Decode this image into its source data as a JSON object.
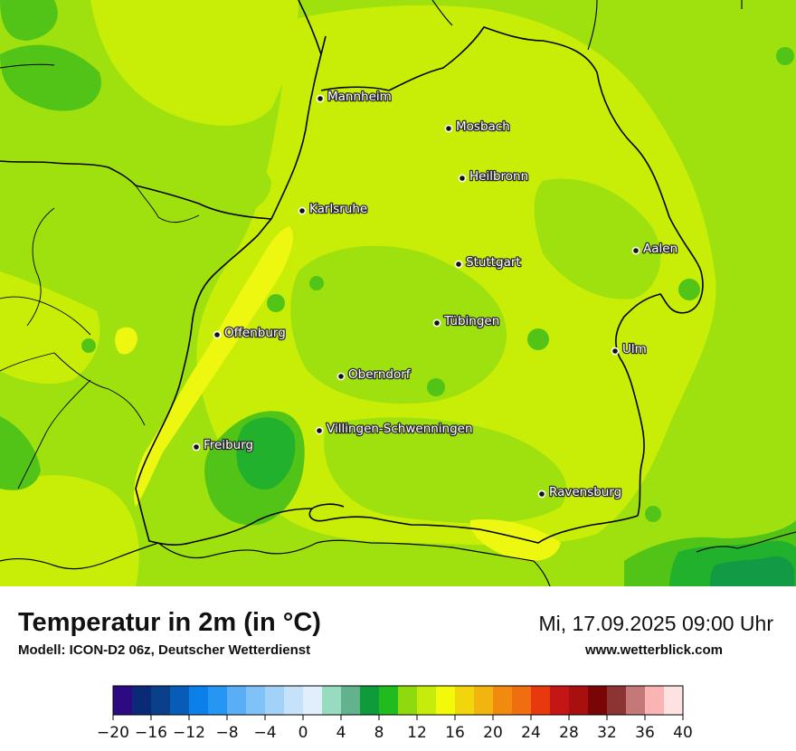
{
  "title": "Temperatur in 2m (in °C)",
  "model": "Modell: ICON-D2 06z, Deutscher Wetterdienst",
  "datetime": "Mi, 17.09.2025 09:00 Uhr",
  "website": "www.wetterblick.com",
  "cities": [
    {
      "name": "Mannheim"
    },
    {
      "name": "Mosbach"
    },
    {
      "name": "Heilbronn"
    },
    {
      "name": "Karlsruhe"
    },
    {
      "name": "Aalen"
    },
    {
      "name": "Stuttgart"
    },
    {
      "name": "Tübingen"
    },
    {
      "name": "Offenburg"
    },
    {
      "name": "Ulm"
    },
    {
      "name": "Oberndorf"
    },
    {
      "name": "Villingen-Schwenningen"
    },
    {
      "name": "Freiburg"
    },
    {
      "name": "Ravensburg"
    }
  ],
  "legend": {
    "colors": [
      "#2e0a82",
      "#0a2a78",
      "#0a3f8a",
      "#075cb8",
      "#0b80e8",
      "#2596f2",
      "#5aaef5",
      "#7ec2f7",
      "#a3d2f8",
      "#c6e2fa",
      "#e1eefb",
      "#98dcc0",
      "#62b28e",
      "#0f9a3c",
      "#1fbb1f",
      "#8fd90f",
      "#c6ec0c",
      "#f2f90a",
      "#f2d60c",
      "#f2b40f",
      "#f28a10",
      "#f06d10",
      "#e8380e",
      "#c41614",
      "#a81010",
      "#7a0506",
      "#8c3434",
      "#c47878",
      "#fab4b4",
      "#fde2e2"
    ],
    "min": -20,
    "max": 40,
    "ticks": [
      "−20",
      "−16",
      "−12",
      "−8",
      "−4",
      "0",
      "4",
      "8",
      "12",
      "16",
      "20",
      "24",
      "28",
      "32",
      "36",
      "40"
    ]
  },
  "map_colors": {
    "base": "#9ee10e",
    "light": "#c8ee08",
    "yellow": "#eef710",
    "green": "#52c418",
    "darkgreen": "#22b12c",
    "teal": "#129a44"
  }
}
